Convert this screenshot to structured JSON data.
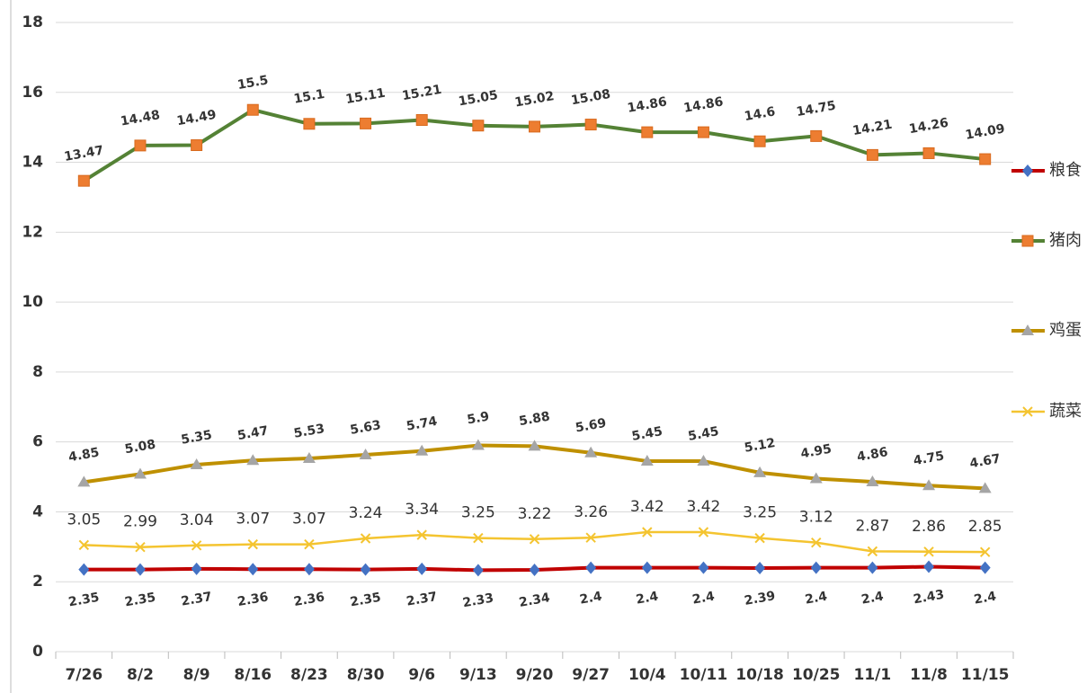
{
  "chart_data": {
    "type": "line",
    "categories": [
      "7/26",
      "8/2",
      "8/9",
      "8/16",
      "8/23",
      "8/30",
      "9/6",
      "9/13",
      "9/20",
      "9/27",
      "10/4",
      "10/11",
      "10/18",
      "10/25",
      "11/1",
      "11/8",
      "11/15"
    ],
    "series": [
      {
        "name": "粮食",
        "color": "#c00000",
        "marker": "diamond",
        "marker_color": "#4472c4",
        "values": [
          2.35,
          2.35,
          2.37,
          2.36,
          2.36,
          2.35,
          2.37,
          2.33,
          2.34,
          2.4,
          2.4,
          2.4,
          2.39,
          2.4,
          2.4,
          2.43,
          2.4
        ]
      },
      {
        "name": "猪肉",
        "color": "#548235",
        "marker": "square",
        "marker_color": "#ed7d31",
        "values": [
          13.47,
          14.48,
          14.49,
          15.5,
          15.1,
          15.11,
          15.21,
          15.05,
          15.02,
          15.08,
          14.86,
          14.86,
          14.6,
          14.75,
          14.21,
          14.26,
          14.09
        ]
      },
      {
        "name": "鸡蛋",
        "color": "#bf9000",
        "marker": "triangle",
        "marker_color": "#a5a5a5",
        "values": [
          4.85,
          5.08,
          5.35,
          5.47,
          5.53,
          5.63,
          5.74,
          5.9,
          5.88,
          5.69,
          5.45,
          5.45,
          5.12,
          4.95,
          4.86,
          4.75,
          4.67
        ]
      },
      {
        "name": "蔬菜",
        "color": "#f4c430",
        "marker": "x",
        "marker_color": "#f4c430",
        "values": [
          3.05,
          2.99,
          3.04,
          3.07,
          3.07,
          3.24,
          3.34,
          3.25,
          3.22,
          3.26,
          3.42,
          3.42,
          3.25,
          3.12,
          2.87,
          2.86,
          2.85
        ]
      }
    ],
    "ylim": [
      0,
      18
    ],
    "yticks": [
      0,
      2,
      4,
      6,
      8,
      10,
      12,
      14,
      16,
      18
    ],
    "grid": true,
    "legend": "right"
  }
}
